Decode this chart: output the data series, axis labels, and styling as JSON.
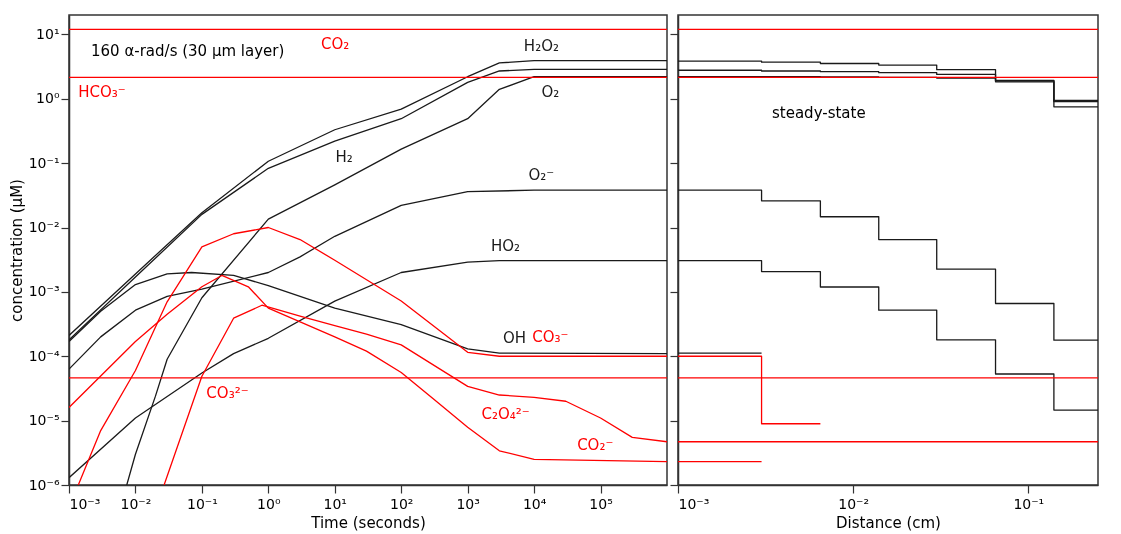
{
  "chart_data": [
    {
      "type": "line",
      "xlabel": "Time (seconds)",
      "ylabel": "concentration (μM)",
      "xlim": [
        0.001,
        1000000
      ],
      "ylim": [
        1e-06,
        20
      ],
      "log": "xy",
      "xticks": [
        {
          "value": 0.001,
          "label": "10⁻³"
        },
        {
          "value": 0.01,
          "label": "10⁻²"
        },
        {
          "value": 0.1,
          "label": "10⁻¹"
        },
        {
          "value": 1,
          "label": "10⁰"
        },
        {
          "value": 10,
          "label": "10¹"
        },
        {
          "value": 100,
          "label": "10²"
        },
        {
          "value": 1000,
          "label": "10³"
        },
        {
          "value": 10000,
          "label": "10⁴"
        },
        {
          "value": 100000,
          "label": "10⁵"
        }
      ],
      "yticks": [
        {
          "value": 1e-06,
          "label": "10⁻⁶"
        },
        {
          "value": 1e-05,
          "label": "10⁻⁵"
        },
        {
          "value": 0.0001,
          "label": "10⁻⁴"
        },
        {
          "value": 0.001,
          "label": "10⁻³"
        },
        {
          "value": 0.01,
          "label": "10⁻²"
        },
        {
          "value": 0.1,
          "label": "10⁻¹"
        },
        {
          "value": 1,
          "label": "10⁰"
        },
        {
          "value": 10,
          "label": "10¹"
        }
      ],
      "series": [
        {
          "name": "H₂O₂",
          "color": "#1a1a1a",
          "x": [
            0.001,
            0.01,
            0.1,
            1,
            10,
            100,
            1000,
            3000,
            10000,
            1000000
          ],
          "values": [
            0.00021,
            0.0019,
            0.017,
            0.107,
            0.33,
            0.69,
            2.2,
            3.6,
            3.9,
            3.9
          ]
        },
        {
          "name": "H₂",
          "color": "#1a1a1a",
          "x": [
            0.001,
            0.01,
            0.1,
            1,
            10,
            100,
            1000,
            3000,
            10000,
            1000000
          ],
          "values": [
            0.00018,
            0.0017,
            0.016,
            0.083,
            0.22,
            0.49,
            1.8,
            2.7,
            2.85,
            2.85
          ]
        },
        {
          "name": "O₂",
          "color": "#1a1a1a",
          "x": [
            0.0074,
            0.01,
            0.02,
            0.03,
            0.1,
            1,
            10,
            100,
            1000,
            3000,
            10000,
            1000000
          ],
          "values": [
            1e-06,
            3e-06,
            2.4e-05,
            9e-05,
            0.00081,
            0.0135,
            0.046,
            0.165,
            0.49,
            1.4,
            2.2,
            2.2
          ]
        },
        {
          "name": "O₂⁻",
          "color": "#1a1a1a",
          "x": [
            0.001,
            0.003,
            0.01,
            0.03,
            0.1,
            1,
            3,
            10,
            100,
            1000,
            10000,
            1000000
          ],
          "values": [
            6.3e-05,
            0.0002,
            0.00052,
            0.00085,
            0.0011,
            0.002,
            0.0035,
            0.0073,
            0.022,
            0.036,
            0.038,
            0.038
          ]
        },
        {
          "name": "OH",
          "color": "#1a1a1a",
          "x": [
            0.001,
            0.003,
            0.01,
            0.03,
            0.07,
            0.3,
            1,
            10,
            100,
            1000,
            3000,
            1000000
          ],
          "values": [
            0.00017,
            0.0005,
            0.0013,
            0.0019,
            0.002,
            0.0018,
            0.00125,
            0.00056,
            0.00031,
            0.00013,
            0.000112,
            0.00011
          ]
        },
        {
          "name": "HO₂",
          "color": "#1a1a1a",
          "x": [
            0.001,
            0.01,
            0.1,
            0.3,
            1,
            10,
            100,
            1000,
            3000,
            1000000
          ],
          "values": [
            1.3e-06,
            1.1e-05,
            5.5e-05,
            0.00011,
            0.00019,
            0.00072,
            0.002,
            0.0029,
            0.00305,
            0.00305
          ]
        },
        {
          "name": "CO₃⁻",
          "color": "#ff0000",
          "x": [
            0.00138,
            0.003,
            0.01,
            0.03,
            0.1,
            0.3,
            1,
            3,
            10,
            100,
            1000,
            3000,
            1000000
          ],
          "values": [
            1e-06,
            7e-06,
            6e-05,
            0.0007,
            0.005,
            0.008,
            0.01,
            0.0065,
            0.0031,
            0.00072,
            0.000115,
            0.0001,
            0.0001
          ]
        },
        {
          "name": "CO₂⁻",
          "color": "#ff0000",
          "x": [
            0.001,
            0.01,
            0.03,
            0.1,
            0.2,
            0.5,
            1,
            10,
            30,
            100,
            300,
            1000,
            3000,
            10000,
            1000000
          ],
          "values": [
            1.6e-05,
            0.00017,
            0.00045,
            0.0012,
            0.0018,
            0.0012,
            0.00056,
            0.0002,
            0.00012,
            5.6e-05,
            2.2e-05,
            7.9e-06,
            3.4e-06,
            2.5e-06,
            2.3e-06
          ]
        },
        {
          "name": "C₂O₄²⁻",
          "color": "#ff0000",
          "x": [
            0.027,
            0.1,
            0.3,
            0.8,
            3,
            10,
            30,
            100,
            1000,
            3000,
            10000,
            30000,
            100000,
            300000,
            1000000
          ],
          "values": [
            1e-06,
            4.9e-05,
            0.00039,
            0.00062,
            0.00042,
            0.0003,
            0.00022,
            0.00015,
            3.4e-05,
            2.5e-05,
            2.3e-05,
            2e-05,
            1.1e-05,
            5.5e-06,
            4.7e-06
          ]
        },
        {
          "name": "CO₂",
          "color": "#ff0000",
          "x": [
            0.001,
            1000000
          ],
          "values": [
            12,
            12
          ]
        },
        {
          "name": "HCO₃⁻",
          "color": "#ff0000",
          "x": [
            0.001,
            1000000
          ],
          "values": [
            2.15,
            2.15
          ]
        },
        {
          "name": "CO₃²⁻",
          "color": "#ff0000",
          "x": [
            0.001,
            1000000
          ],
          "values": [
            4.6e-05,
            4.6e-05
          ]
        }
      ],
      "annotations": [
        "160 α-rad/s  (30 μm layer)"
      ]
    },
    {
      "type": "step",
      "xlabel": "Distance (cm)",
      "xlim": [
        0.001,
        0.25
      ],
      "ylim": [
        1e-06,
        20
      ],
      "log": "xy",
      "tick_labels": "x",
      "xticks": [
        {
          "value": 0.001,
          "label": "10⁻³"
        },
        {
          "value": 0.01,
          "label": "10⁻²"
        },
        {
          "value": 0.1,
          "label": "10⁻¹"
        }
      ],
      "yticks": [
        {
          "value": 1e-06,
          "label": null
        },
        {
          "value": 1e-05,
          "label": null
        },
        {
          "value": 0.0001,
          "label": null
        },
        {
          "value": 0.001,
          "label": null
        },
        {
          "value": 0.01,
          "label": null
        },
        {
          "value": 0.1,
          "label": null
        },
        {
          "value": 1,
          "label": null
        },
        {
          "value": 10,
          "label": null
        }
      ],
      "series": [
        {
          "color": "#1a1a1a",
          "x": [
            0.001,
            0.003,
            0.0065,
            0.014,
            0.03,
            0.065,
            0.14,
            0.25
          ],
          "values": [
            3.85,
            3.7,
            3.53,
            3.33,
            2.83,
            1.92,
            0.94,
            0.94
          ]
        },
        {
          "color": "#1a1a1a",
          "x": [
            0.001,
            0.003,
            0.0065,
            0.014,
            0.03,
            0.065,
            0.14,
            0.25
          ],
          "values": [
            2.77,
            2.7,
            2.63,
            2.54,
            2.39,
            1.9,
            0.9,
            0.9
          ]
        },
        {
          "color": "#1a1a1a",
          "x": [
            0.001,
            0.003,
            0.0065,
            0.014,
            0.03,
            0.065,
            0.14,
            0.25
          ],
          "values": [
            2.2,
            2.2,
            2.18,
            2.15,
            2.1,
            1.83,
            0.75,
            0.75
          ]
        },
        {
          "color": "#1a1a1a",
          "x": [
            0.001,
            0.003,
            0.0065,
            0.014,
            0.03,
            0.065,
            0.14,
            0.25
          ],
          "values": [
            0.038,
            0.026,
            0.0147,
            0.0065,
            0.00225,
            0.00066,
            0.000178,
            0.000178
          ]
        },
        {
          "color": "#1a1a1a",
          "x": [
            0.001,
            0.003,
            0.0065,
            0.014,
            0.03,
            0.065,
            0.14,
            0.25
          ],
          "values": [
            0.00305,
            0.00207,
            0.00119,
            0.00052,
            0.00018,
            5.3e-05,
            1.46e-05,
            1.46e-05
          ]
        },
        {
          "color": "#1a1a1a",
          "x": [
            0.001,
            0.003
          ],
          "values": [
            0.000112,
            0.000112
          ]
        },
        {
          "color": "#ff0000",
          "x": [
            0.001,
            0.003,
            0.0065
          ],
          "values": [
            0.0001,
            8.95e-06,
            8.95e-06
          ]
        },
        {
          "color": "#ff0000",
          "x": [
            0.001,
            0.003
          ],
          "values": [
            2.3e-06,
            2.3e-06
          ]
        },
        {
          "color": "#ff0000",
          "x": [
            0.001,
            0.25
          ],
          "values": [
            4.7e-06,
            4.7e-06
          ]
        },
        {
          "color": "#ff0000",
          "x": [
            0.001,
            0.25
          ],
          "values": [
            12,
            12
          ]
        },
        {
          "color": "#ff0000",
          "x": [
            0.001,
            0.25
          ],
          "values": [
            2.15,
            2.15
          ]
        },
        {
          "color": "#ff0000",
          "x": [
            0.001,
            0.25
          ],
          "values": [
            4.6e-05,
            4.6e-05
          ]
        }
      ],
      "annotations": [
        "steady-state"
      ]
    }
  ]
}
